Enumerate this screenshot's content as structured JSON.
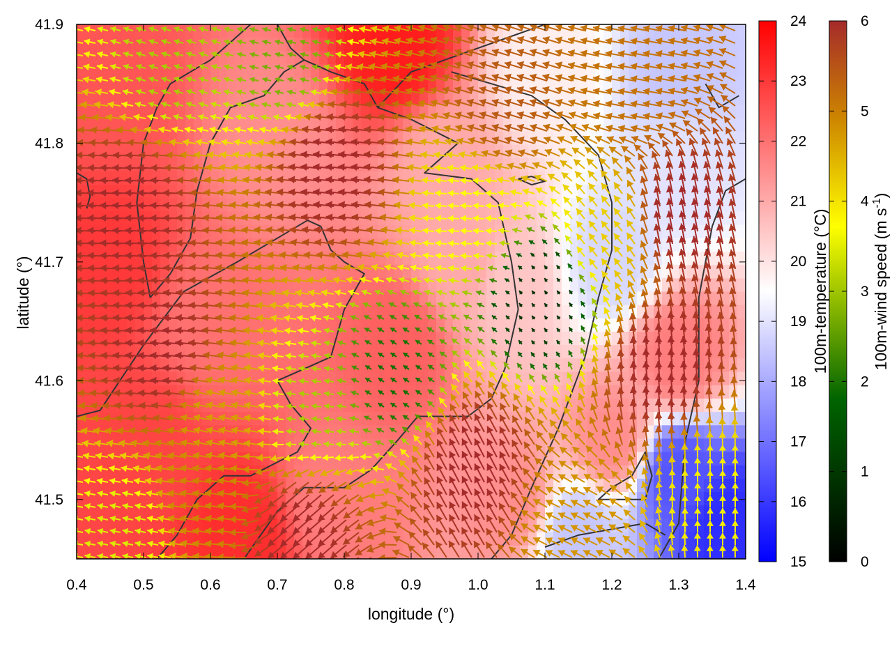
{
  "chart_data": {
    "type": "heatmap",
    "title": "",
    "xlabel": "longitude (°)",
    "ylabel": "latitude (°)",
    "xlim": [
      0.4,
      1.4
    ],
    "ylim": [
      41.45,
      41.9
    ],
    "x_ticks": [
      "0.4",
      "0.5",
      "0.6",
      "0.7",
      "0.8",
      "0.9",
      "1.0",
      "1.1",
      "1.2",
      "1.3",
      "1.4"
    ],
    "y_ticks": [
      "41.5",
      "41.6",
      "41.7",
      "41.8",
      "41.9"
    ],
    "grid": false,
    "temperature_colorbar": {
      "label": "100m-temperature (°C)",
      "range": [
        15,
        24
      ],
      "ticks": [
        "15",
        "16",
        "17",
        "18",
        "19",
        "20",
        "21",
        "22",
        "23",
        "24"
      ],
      "colors": [
        "#0000ff",
        "#ffffff",
        "#ff0000"
      ]
    },
    "wind_colorbar": {
      "label": "100m-wind speed (m s-1)",
      "label_main": "100m-wind speed (m s",
      "label_sup": "-1",
      "label_end": ")",
      "range": [
        0,
        6
      ],
      "ticks": [
        "0",
        "1",
        "2",
        "3",
        "4",
        "5",
        "6"
      ],
      "colors": [
        "#000000",
        "#006400",
        "#ffff00",
        "#cd8500",
        "#a52a2a"
      ]
    },
    "temperature_field": [
      {
        "lon": 0.45,
        "lat": 41.85,
        "temp": 22.5
      },
      {
        "lon": 0.45,
        "lat": 41.7,
        "temp": 23
      },
      {
        "lon": 0.5,
        "lat": 41.55,
        "temp": 22.8
      },
      {
        "lon": 0.65,
        "lat": 41.47,
        "temp": 23.2
      },
      {
        "lon": 0.6,
        "lat": 41.65,
        "temp": 22
      },
      {
        "lon": 0.7,
        "lat": 41.8,
        "temp": 21.5
      },
      {
        "lon": 0.88,
        "lat": 41.88,
        "temp": 23.5
      },
      {
        "lon": 0.88,
        "lat": 41.63,
        "temp": 22.3
      },
      {
        "lon": 0.95,
        "lat": 41.78,
        "temp": 21
      },
      {
        "lon": 1.05,
        "lat": 41.68,
        "temp": 20.5
      },
      {
        "lon": 0.78,
        "lat": 41.5,
        "temp": 21.8
      },
      {
        "lon": 1.05,
        "lat": 41.5,
        "temp": 21.5
      },
      {
        "lon": 1.1,
        "lat": 41.86,
        "temp": 19.8
      },
      {
        "lon": 1.3,
        "lat": 41.86,
        "temp": 18.5
      },
      {
        "lon": 1.3,
        "lat": 41.78,
        "temp": 19
      },
      {
        "lon": 1.2,
        "lat": 41.7,
        "temp": 18.8
      },
      {
        "lon": 1.3,
        "lat": 41.62,
        "temp": 21.8
      },
      {
        "lon": 1.2,
        "lat": 41.55,
        "temp": 21.5
      },
      {
        "lon": 1.3,
        "lat": 41.52,
        "temp": 16.5
      },
      {
        "lon": 1.37,
        "lat": 41.48,
        "temp": 15.8
      },
      {
        "lon": 1.15,
        "lat": 41.47,
        "temp": 18.5
      },
      {
        "lon": 0.98,
        "lat": 41.7,
        "temp": 21
      }
    ],
    "wind_regions": [
      {
        "lon": 0.5,
        "lat": 41.75,
        "u": -5.5,
        "v": 0.3,
        "speed": 6
      },
      {
        "lon": 0.55,
        "lat": 41.62,
        "u": -5.4,
        "v": 0.5,
        "speed": 6
      },
      {
        "lon": 0.55,
        "lat": 41.86,
        "u": -2,
        "v": 0.6,
        "speed": 2.5
      },
      {
        "lon": 0.72,
        "lat": 41.87,
        "u": -2,
        "v": 0.5,
        "speed": 2.2
      },
      {
        "lon": 0.8,
        "lat": 41.78,
        "u": -5.5,
        "v": 0.6,
        "speed": 6
      },
      {
        "lon": 1.05,
        "lat": 41.83,
        "u": -4.8,
        "v": 1.5,
        "speed": 5.2
      },
      {
        "lon": 1.25,
        "lat": 41.85,
        "u": -4.5,
        "v": 0.8,
        "speed": 4.8
      },
      {
        "lon": 1.0,
        "lat": 41.74,
        "u": -2.8,
        "v": 0.2,
        "speed": 3
      },
      {
        "lon": 1.1,
        "lat": 41.67,
        "u": -0.3,
        "v": 0.4,
        "speed": 0.7
      },
      {
        "lon": 0.88,
        "lat": 41.6,
        "u": -1.2,
        "v": 0.8,
        "speed": 1.6
      },
      {
        "lon": 0.76,
        "lat": 41.57,
        "u": -2.2,
        "v": 0.3,
        "speed": 2.5
      },
      {
        "lon": 0.62,
        "lat": 41.57,
        "u": -4,
        "v": 0.8,
        "speed": 4.2
      },
      {
        "lon": 0.6,
        "lat": 41.5,
        "u": -4.2,
        "v": 0.6,
        "speed": 4.5
      },
      {
        "lon": 0.48,
        "lat": 41.47,
        "u": -2.5,
        "v": 0.5,
        "speed": 2.8
      },
      {
        "lon": 0.75,
        "lat": 41.48,
        "u": -4,
        "v": -3.5,
        "speed": 6
      },
      {
        "lon": 1.0,
        "lat": 41.52,
        "u": -2.5,
        "v": 4.8,
        "speed": 6
      },
      {
        "lon": 1.28,
        "lat": 41.6,
        "u": -0.5,
        "v": 5.5,
        "speed": 6
      },
      {
        "lon": 1.3,
        "lat": 41.73,
        "u": -1,
        "v": 5.5,
        "speed": 6
      },
      {
        "lon": 1.2,
        "lat": 41.72,
        "u": -2,
        "v": 2.5,
        "speed": 3.6
      },
      {
        "lon": 1.35,
        "lat": 41.5,
        "u": 0,
        "v": 3,
        "speed": 3.2
      },
      {
        "lon": 1.15,
        "lat": 41.47,
        "u": -3,
        "v": 1.5,
        "speed": 4.3
      }
    ]
  },
  "coastline": [
    [
      [
        0.4,
        41.57
      ],
      [
        0.435,
        41.575
      ],
      [
        0.5,
        41.63
      ],
      [
        0.56,
        41.675
      ],
      [
        0.64,
        41.7
      ],
      [
        0.7,
        41.72
      ],
      [
        0.745,
        41.735
      ],
      [
        0.765,
        41.73
      ],
      [
        0.78,
        41.71
      ],
      [
        0.8,
        41.7
      ],
      [
        0.83,
        41.69
      ],
      [
        0.8,
        41.66
      ],
      [
        0.78,
        41.62
      ],
      [
        0.74,
        41.61
      ],
      [
        0.7,
        41.6
      ],
      [
        0.72,
        41.58
      ],
      [
        0.75,
        41.56
      ],
      [
        0.73,
        41.54
      ],
      [
        0.66,
        41.52
      ],
      [
        0.62,
        41.52
      ],
      [
        0.58,
        41.5
      ],
      [
        0.55,
        41.47
      ],
      [
        0.52,
        41.45
      ]
    ],
    [
      [
        0.65,
        41.45
      ],
      [
        0.7,
        41.49
      ],
      [
        0.74,
        41.51
      ],
      [
        0.8,
        41.51
      ],
      [
        0.84,
        41.525
      ],
      [
        0.88,
        41.55
      ],
      [
        0.91,
        41.57
      ],
      [
        0.95,
        41.57
      ],
      [
        0.985,
        41.57
      ],
      [
        1.02,
        41.585
      ],
      [
        1.04,
        41.61
      ],
      [
        1.06,
        41.66
      ],
      [
        1.05,
        41.7
      ],
      [
        1.03,
        41.75
      ],
      [
        0.99,
        41.77
      ],
      [
        0.92,
        41.775
      ],
      [
        0.97,
        41.8
      ],
      [
        0.9,
        41.82
      ],
      [
        0.85,
        41.83
      ],
      [
        0.83,
        41.85
      ],
      [
        0.78,
        41.86
      ],
      [
        0.74,
        41.87
      ],
      [
        0.72,
        41.88
      ],
      [
        0.7,
        41.9
      ]
    ],
    [
      [
        0.85,
        41.83
      ],
      [
        0.9,
        41.86
      ],
      [
        0.95,
        41.87
      ],
      [
        1.0,
        41.88
      ],
      [
        1.05,
        41.89
      ],
      [
        1.1,
        41.9
      ]
    ],
    [
      [
        1.02,
        41.45
      ],
      [
        1.05,
        41.47
      ],
      [
        1.08,
        41.51
      ],
      [
        1.12,
        41.56
      ],
      [
        1.16,
        41.62
      ],
      [
        1.18,
        41.67
      ],
      [
        1.2,
        41.71
      ],
      [
        1.2,
        41.75
      ],
      [
        1.18,
        41.79
      ],
      [
        1.13,
        41.82
      ],
      [
        1.08,
        41.84
      ],
      [
        1.02,
        41.85
      ],
      [
        0.96,
        41.86
      ]
    ],
    [
      [
        0.51,
        41.67
      ],
      [
        0.5,
        41.7
      ],
      [
        0.49,
        41.75
      ],
      [
        0.5,
        41.8
      ],
      [
        0.52,
        41.83
      ],
      [
        0.54,
        41.85
      ],
      [
        0.57,
        41.86
      ],
      [
        0.6,
        41.87
      ],
      [
        0.62,
        41.88
      ],
      [
        0.66,
        41.9
      ]
    ],
    [
      [
        0.51,
        41.67
      ],
      [
        0.54,
        41.69
      ],
      [
        0.57,
        41.72
      ],
      [
        0.58,
        41.76
      ],
      [
        0.6,
        41.8
      ],
      [
        0.63,
        41.83
      ],
      [
        0.68,
        41.84
      ],
      [
        0.71,
        41.86
      ],
      [
        0.74,
        41.87
      ]
    ],
    [
      [
        1.27,
        41.45
      ],
      [
        1.3,
        41.48
      ],
      [
        1.31,
        41.55
      ],
      [
        1.33,
        41.6
      ],
      [
        1.33,
        41.67
      ],
      [
        1.35,
        41.73
      ],
      [
        1.37,
        41.76
      ],
      [
        1.4,
        41.77
      ]
    ],
    [
      [
        1.22,
        41.5
      ],
      [
        1.25,
        41.5
      ],
      [
        1.26,
        41.52
      ],
      [
        1.25,
        41.54
      ],
      [
        1.23,
        41.52
      ],
      [
        1.2,
        41.51
      ],
      [
        1.18,
        41.5
      ],
      [
        1.22,
        41.5
      ]
    ],
    [
      [
        1.1,
        41.46
      ],
      [
        1.15,
        41.47
      ],
      [
        1.2,
        41.475
      ],
      [
        1.25,
        41.48
      ],
      [
        1.28,
        41.47
      ]
    ],
    [
      [
        0.4,
        41.775
      ],
      [
        0.415,
        41.77
      ],
      [
        0.42,
        41.755
      ],
      [
        0.415,
        41.745
      ]
    ],
    [
      [
        1.06,
        41.77
      ],
      [
        1.08,
        41.765
      ],
      [
        1.1,
        41.768
      ],
      [
        1.08,
        41.772
      ],
      [
        1.06,
        41.77
      ]
    ],
    [
      [
        1.34,
        41.85
      ],
      [
        1.36,
        41.83
      ],
      [
        1.39,
        41.84
      ]
    ]
  ]
}
